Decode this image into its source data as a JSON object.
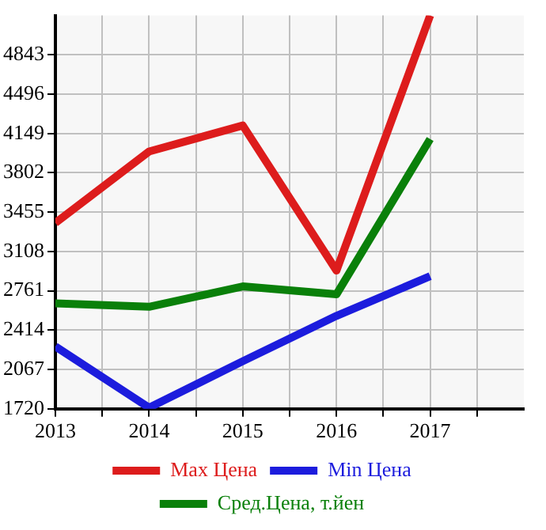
{
  "chart_data": {
    "type": "line",
    "x": [
      2013,
      2014,
      2015,
      2016,
      2017
    ],
    "series": [
      {
        "name": "Max Цена",
        "color": "#dd1c1c",
        "values": [
          3360,
          3990,
          4220,
          2940,
          5190
        ]
      },
      {
        "name": "Min Цена",
        "color": "#1c1cdd",
        "values": [
          2270,
          1730,
          2140,
          2540,
          2890
        ]
      },
      {
        "name": "Сред.Цена, т.йен",
        "color": "#0a800a",
        "values": [
          2650,
          2620,
          2800,
          2730,
          4100
        ]
      }
    ],
    "xlim": [
      2013,
      2018
    ],
    "xticks": [
      2013,
      {
        "value": 2013.5,
        "label": null
      },
      2014,
      {
        "value": 2014.5,
        "label": null
      },
      2015,
      {
        "value": 2015.5,
        "label": null
      },
      2016,
      {
        "value": 2016.5,
        "label": null
      },
      2017,
      {
        "value": 2017.5,
        "label": null
      }
    ],
    "ylim": [
      1720,
      5190
    ],
    "yticks": [
      1720,
      2067,
      2414,
      2761,
      3108,
      3455,
      3802,
      4149,
      4496,
      4843
    ],
    "grid": true,
    "legend": "bottom",
    "marker": "none",
    "line_style": "solid"
  }
}
